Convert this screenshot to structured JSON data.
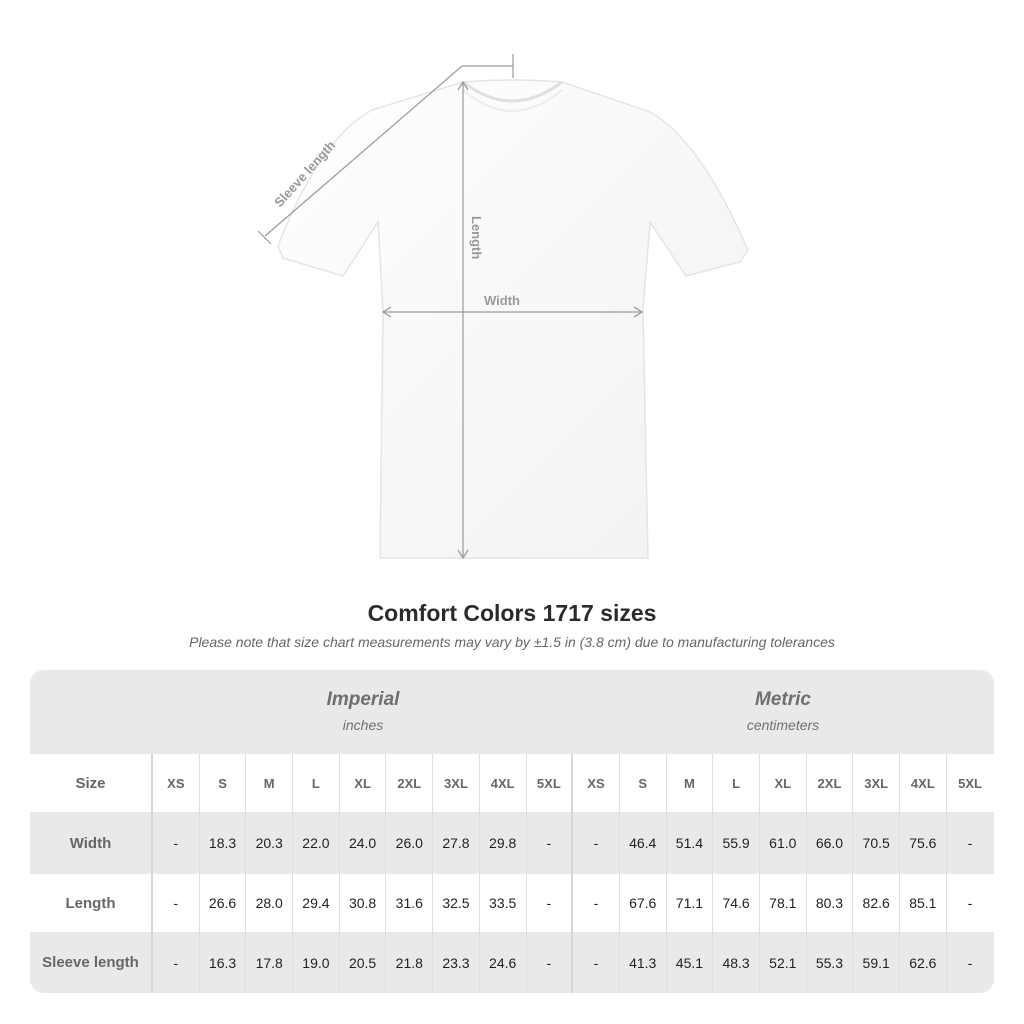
{
  "diagram": {
    "labels": {
      "sleeve": "Sleeve length",
      "length": "Length",
      "width": "Width"
    }
  },
  "title": "Comfort Colors 1717 sizes",
  "note": "Please note that size chart measurements may vary by ±1.5 in (3.8 cm) due to manufacturing tolerances",
  "table": {
    "imperial": {
      "title": "Imperial",
      "unit": "inches"
    },
    "metric": {
      "title": "Metric",
      "unit": "centimeters"
    },
    "size_label": "Size",
    "sizes": [
      "XS",
      "S",
      "M",
      "L",
      "XL",
      "2XL",
      "3XL",
      "4XL",
      "5XL"
    ],
    "rows": [
      {
        "label": "Width",
        "imperial": [
          "-",
          "18.3",
          "20.3",
          "22.0",
          "24.0",
          "26.0",
          "27.8",
          "29.8",
          "-"
        ],
        "metric": [
          "-",
          "46.4",
          "51.4",
          "55.9",
          "61.0",
          "66.0",
          "70.5",
          "75.6",
          "-"
        ]
      },
      {
        "label": "Length",
        "imperial": [
          "-",
          "26.6",
          "28.0",
          "29.4",
          "30.8",
          "31.6",
          "32.5",
          "33.5",
          "-"
        ],
        "metric": [
          "-",
          "67.6",
          "71.1",
          "74.6",
          "78.1",
          "80.3",
          "82.6",
          "85.1",
          "-"
        ]
      },
      {
        "label": "Sleeve length",
        "imperial": [
          "-",
          "16.3",
          "17.8",
          "19.0",
          "20.5",
          "21.8",
          "23.3",
          "24.6",
          "-"
        ],
        "metric": [
          "-",
          "41.3",
          "45.1",
          "48.3",
          "52.1",
          "55.3",
          "59.1",
          "62.6",
          "-"
        ]
      }
    ]
  }
}
